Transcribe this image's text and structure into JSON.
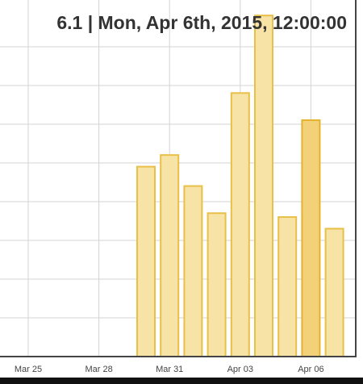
{
  "header": {
    "readout": "6.1 | Mon, Apr 6th, 2015, 12:00:00"
  },
  "colors": {
    "bar_fill": "#f8e3a6",
    "bar_stroke": "#e8bf47",
    "selected_fill": "#f2d178",
    "grid": "#d3d3d3",
    "axis": "#444444"
  },
  "chart_data": {
    "type": "bar",
    "grid": true,
    "x_ticks": [
      "Mar 25",
      "Mar 28",
      "Mar 31",
      "Apr 03",
      "Apr 06"
    ],
    "categories": [
      "Mar 30",
      "Mar 31",
      "Apr 01",
      "Apr 02",
      "Apr 03",
      "Apr 04",
      "Apr 05",
      "Apr 06",
      "Apr 07"
    ],
    "values": [
      4.9,
      5.2,
      4.4,
      3.7,
      6.8,
      8.8,
      3.6,
      6.1,
      3.3
    ],
    "selected": "Apr 06",
    "ylim": [
      0,
      9.2
    ]
  }
}
